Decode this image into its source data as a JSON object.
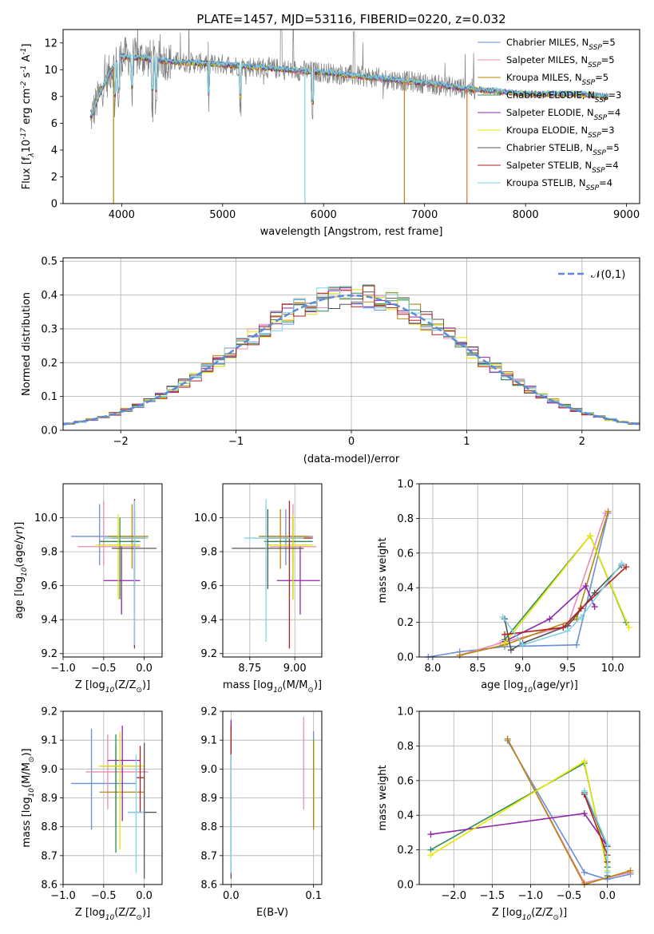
{
  "colors": [
    "#6a8fd6",
    "#e88cb7",
    "#b8860b",
    "#2e8b57",
    "#8e24aa",
    "#e6e600",
    "#555555",
    "#b22222",
    "#7fd3e6"
  ],
  "chart_data": [
    {
      "id": "spectrum",
      "type": "line",
      "title": "PLATE=1457, MJD=53116, FIBERID=0220, z=0.032",
      "xlabel": "wavelength [Angstrom, rest frame]",
      "ylabel": "Flux [f$_\\lambda$10$^{-17}$ erg cm$^{-2}$ s$^{-1}$ A$^{-1}$]",
      "xlim": [
        3420,
        9130
      ],
      "ylim": [
        0,
        13
      ],
      "xticks": [
        "4000",
        "5000",
        "6000",
        "7000",
        "8000",
        "9000"
      ],
      "yticks": [
        "0",
        "2",
        "4",
        "6",
        "8",
        "10",
        "12"
      ],
      "legend_position": "top-right",
      "series": [
        {
          "name": "Chabrier MILES, N$_{SSP}$=5"
        },
        {
          "name": "Salpeter MILES, N$_{SSP}$=5"
        },
        {
          "name": "Kroupa MILES, N$_{SSP}$=5"
        },
        {
          "name": "Chabrier ELODIE, N$_{SSP}$=3"
        },
        {
          "name": "Salpeter ELODIE, N$_{SSP}$=4"
        },
        {
          "name": "Kroupa ELODIE, N$_{SSP}$=3"
        },
        {
          "name": "Chabrier STELIB, N$_{SSP}$=5"
        },
        {
          "name": "Salpeter STELIB, N$_{SSP}$=4"
        },
        {
          "name": "Kroupa STELIB, N$_{SSP}$=4"
        }
      ],
      "model_continuum": {
        "x": [
          3700,
          3800,
          3900,
          4000,
          4200,
          4500,
          5000,
          5500,
          6000,
          6500,
          7000,
          7400,
          8000,
          8500,
          8800
        ],
        "y": [
          6.5,
          8.5,
          10.0,
          11.0,
          10.9,
          10.6,
          10.4,
          10.1,
          9.8,
          9.4,
          9.0,
          8.6,
          8.2,
          8.2,
          8.0
        ]
      }
    },
    {
      "id": "residuals",
      "type": "line",
      "xlabel": "(data-model)/error",
      "ylabel": "Normed distribution",
      "xlim": [
        -2.5,
        2.5
      ],
      "ylim": [
        0,
        0.51
      ],
      "xticks": [
        "−2",
        "−1",
        "0",
        "1",
        "2"
      ],
      "yticks": [
        "0.0",
        "0.1",
        "0.2",
        "0.3",
        "0.4",
        "0.5"
      ],
      "legend": "$\\mathcal{N}(0,1)$",
      "legend_position": "top-right",
      "bin_width": 0.1
    },
    {
      "id": "age-Z",
      "type": "scatter",
      "xlabel": "Z [log$_{10}$(Z/Z$_\\odot$)]",
      "ylabel": "age  [log$_{10}$(age/yr)]",
      "xlim": [
        -1.0,
        0.22
      ],
      "ylim": [
        9.18,
        10.2
      ],
      "xticks": [
        "−1.0",
        "−0.5",
        "0.0"
      ],
      "yticks": [
        "9.2",
        "9.4",
        "9.6",
        "9.8",
        "10.0"
      ],
      "points": [
        {
          "x": -0.55,
          "y": 9.89,
          "xlo": -0.9,
          "xhi": -0.1,
          "ylo": 9.72,
          "yhi": 10.08
        },
        {
          "x": -0.5,
          "y": 9.83,
          "xlo": -0.82,
          "xhi": -0.05,
          "ylo": 9.72,
          "yhi": 10.1
        },
        {
          "x": -0.15,
          "y": 9.89,
          "xlo": -0.45,
          "xhi": 0.05,
          "ylo": 9.7,
          "yhi": 10.08
        },
        {
          "x": -0.3,
          "y": 9.86,
          "xlo": -0.55,
          "xhi": -0.05,
          "ylo": 9.52,
          "yhi": 10.0
        },
        {
          "x": -0.28,
          "y": 9.63,
          "xlo": -0.5,
          "xhi": -0.05,
          "ylo": 9.43,
          "yhi": 9.83
        },
        {
          "x": -0.32,
          "y": 9.84,
          "xlo": -0.6,
          "xhi": -0.05,
          "ylo": 9.52,
          "yhi": 10.02
        },
        {
          "x": -0.12,
          "y": 9.82,
          "xlo": -0.4,
          "xhi": 0.15,
          "ylo": 9.58,
          "yhi": 10.05
        },
        {
          "x": -0.12,
          "y": 9.88,
          "xlo": -0.4,
          "xhi": 0.02,
          "ylo": 9.23,
          "yhi": 10.11
        },
        {
          "x": -0.12,
          "y": 9.88,
          "xlo": -0.5,
          "xhi": 0.05,
          "ylo": 9.25,
          "yhi": 10.1
        }
      ]
    },
    {
      "id": "age-mass",
      "type": "scatter",
      "xlabel": "mass [log$_{10}$(M/M$_\\odot$)]",
      "ylabel": "",
      "xlim": [
        8.6,
        9.15
      ],
      "ylim": [
        9.18,
        10.2
      ],
      "xticks": [
        "8.75",
        "9.00"
      ],
      "yticks": [
        "9.2",
        "9.4",
        "9.6",
        "9.8",
        "10.0"
      ],
      "points": [
        {
          "x": 8.95,
          "y": 9.89,
          "xlo": 8.82,
          "xhi": 9.1,
          "ylo": 9.72,
          "yhi": 10.05
        },
        {
          "x": 8.99,
          "y": 9.83,
          "xlo": 8.86,
          "xhi": 9.12,
          "ylo": 9.72,
          "yhi": 10.08
        },
        {
          "x": 8.92,
          "y": 9.89,
          "xlo": 8.8,
          "xhi": 9.08,
          "ylo": 9.7,
          "yhi": 10.05
        },
        {
          "x": 8.99,
          "y": 9.86,
          "xlo": 8.83,
          "xhi": 9.1,
          "ylo": 9.52,
          "yhi": 10.0
        },
        {
          "x": 9.03,
          "y": 9.63,
          "xlo": 8.9,
          "xhi": 9.14,
          "ylo": 9.43,
          "yhi": 9.83
        },
        {
          "x": 8.99,
          "y": 9.84,
          "xlo": 8.84,
          "xhi": 9.1,
          "ylo": 9.52,
          "yhi": 10.02
        },
        {
          "x": 8.85,
          "y": 9.82,
          "xlo": 8.65,
          "xhi": 9.05,
          "ylo": 9.58,
          "yhi": 10.05
        },
        {
          "x": 8.97,
          "y": 9.88,
          "xlo": 8.85,
          "xhi": 9.1,
          "ylo": 9.23,
          "yhi": 10.1
        },
        {
          "x": 8.84,
          "y": 9.88,
          "xlo": 8.72,
          "xhi": 9.05,
          "ylo": 9.27,
          "yhi": 10.11
        }
      ]
    },
    {
      "id": "weight-age",
      "type": "line",
      "xlabel": "age  [log$_{10}$(age/yr)]",
      "ylabel": "mass weight",
      "xlim": [
        7.85,
        10.3
      ],
      "ylim": [
        0,
        1.0
      ],
      "xticks": [
        "8.0",
        "8.5",
        "9.0",
        "9.5",
        "10.0"
      ],
      "yticks": [
        "0.0",
        "0.2",
        "0.4",
        "0.6",
        "0.8",
        "1.0"
      ],
      "series": [
        {
          "x": [
            7.95,
            8.3,
            8.8,
            9.6,
            9.95
          ],
          "y": [
            0.0,
            0.03,
            0.06,
            0.07,
            0.83
          ]
        },
        {
          "x": [
            8.3,
            8.75,
            9.5,
            9.92
          ],
          "y": [
            0.01,
            0.08,
            0.18,
            0.83
          ]
        },
        {
          "x": [
            8.3,
            8.8,
            9.6,
            9.95
          ],
          "y": [
            0.01,
            0.07,
            0.22,
            0.84
          ]
        },
        {
          "x": [
            8.8,
            9.75,
            10.15
          ],
          "y": [
            0.1,
            0.7,
            0.2
          ]
        },
        {
          "x": [
            8.8,
            9.3,
            9.7,
            9.8
          ],
          "y": [
            0.09,
            0.22,
            0.41,
            0.29
          ]
        },
        {
          "x": [
            8.8,
            9.75,
            10.18
          ],
          "y": [
            0.08,
            0.7,
            0.17
          ]
        },
        {
          "x": [
            8.8,
            8.87,
            9.0,
            9.5,
            9.8,
            10.1
          ],
          "y": [
            0.22,
            0.04,
            0.08,
            0.18,
            0.37,
            0.53
          ]
        },
        {
          "x": [
            8.8,
            9.45,
            9.65,
            10.15
          ],
          "y": [
            0.13,
            0.17,
            0.28,
            0.52
          ]
        },
        {
          "x": [
            8.78,
            9.0,
            9.5,
            9.65,
            10.1
          ],
          "y": [
            0.23,
            0.07,
            0.15,
            0.23,
            0.54
          ]
        }
      ]
    },
    {
      "id": "mass-Z",
      "type": "scatter",
      "xlabel": "Z [log$_{10}$(Z/Z$_\\odot$)]",
      "ylabel": "mass [log$_{10}$(M/M$_\\odot$)]",
      "xlim": [
        -1.0,
        0.22
      ],
      "ylim": [
        8.6,
        9.2
      ],
      "xticks": [
        "−1.0",
        "−0.5",
        "0.0"
      ],
      "yticks": [
        "8.6",
        "8.7",
        "8.8",
        "8.9",
        "9.0",
        "9.1",
        "9.2"
      ],
      "points": [
        {
          "x": -0.65,
          "y": 8.95,
          "xlo": -0.9,
          "xhi": -0.1,
          "ylo": 8.79,
          "yhi": 9.14
        },
        {
          "x": -0.45,
          "y": 8.99,
          "xlo": -0.72,
          "xhi": 0.05,
          "ylo": 8.86,
          "yhi": 9.12
        },
        {
          "x": -0.35,
          "y": 8.92,
          "xlo": -0.55,
          "xhi": 0.0,
          "ylo": 8.8,
          "yhi": 9.08
        },
        {
          "x": -0.35,
          "y": 9.01,
          "xlo": -0.55,
          "xhi": -0.05,
          "ylo": 8.71,
          "yhi": 9.12
        },
        {
          "x": -0.27,
          "y": 9.03,
          "xlo": -0.45,
          "xhi": -0.05,
          "ylo": 8.82,
          "yhi": 9.15
        },
        {
          "x": -0.3,
          "y": 9.01,
          "xlo": -0.55,
          "xhi": 0.0,
          "ylo": 8.72,
          "yhi": 9.13
        },
        {
          "x": 0.0,
          "y": 8.85,
          "xlo": -0.2,
          "xhi": 0.15,
          "ylo": 8.62,
          "yhi": 9.09
        },
        {
          "x": -0.05,
          "y": 8.97,
          "xlo": -0.1,
          "xhi": 0.0,
          "ylo": 8.85,
          "yhi": 9.08
        },
        {
          "x": -0.1,
          "y": 8.85,
          "xlo": -0.2,
          "xhi": 0.0,
          "ylo": 8.64,
          "yhi": 9.05
        }
      ]
    },
    {
      "id": "mass-EBV",
      "type": "scatter",
      "xlabel": "E(B-V)",
      "ylabel": "",
      "xlim": [
        -0.01,
        0.11
      ],
      "ylim": [
        8.6,
        9.2
      ],
      "xticks": [
        "0.0",
        "0.1"
      ],
      "yticks": [
        "8.6",
        "8.7",
        "8.8",
        "8.9",
        "9.0",
        "9.1",
        "9.2"
      ],
      "points": [
        {
          "x": 0.1,
          "y": 8.95,
          "ylo": 8.8,
          "yhi": 9.13
        },
        {
          "x": 0.088,
          "y": 8.99,
          "ylo": 8.86,
          "yhi": 9.18
        },
        {
          "x": 0.1,
          "y": 8.92,
          "ylo": 8.79,
          "yhi": 9.1
        },
        {
          "x": 0.0,
          "y": 8.95,
          "ylo": 8.71,
          "yhi": 9.14
        },
        {
          "x": 0.0,
          "y": 9.03,
          "ylo": 8.82,
          "yhi": 9.17
        },
        {
          "x": 0.0,
          "y": 8.95,
          "ylo": 8.72,
          "yhi": 9.13
        },
        {
          "x": 0.0,
          "y": 8.85,
          "ylo": 8.62,
          "yhi": 9.1
        },
        {
          "x": 0.0,
          "y": 8.97,
          "ylo": 8.85,
          "yhi": 9.15
        },
        {
          "x": 0.0,
          "y": 8.85,
          "ylo": 8.64,
          "yhi": 9.05
        }
      ]
    },
    {
      "id": "weight-Z",
      "type": "line",
      "xlabel": "Z [log$_{10}$(Z/Z$_\\odot$)]",
      "ylabel": "mass weight",
      "xlim": [
        -2.45,
        0.42
      ],
      "ylim": [
        0,
        1.0
      ],
      "xticks": [
        "−2.0",
        "−1.5",
        "−1.0",
        "−0.5",
        "0.0"
      ],
      "yticks": [
        "0.0",
        "0.2",
        "0.4",
        "0.6",
        "0.8",
        "1.0"
      ],
      "series": [
        {
          "x": [
            -1.3,
            -0.3,
            0.0,
            0.3
          ],
          "y": [
            0.83,
            0.07,
            0.03,
            0.06
          ]
        },
        {
          "x": [
            -1.3,
            -0.3,
            0.3
          ],
          "y": [
            0.84,
            0.01,
            0.07
          ]
        },
        {
          "x": [
            -1.3,
            -0.3,
            0.3
          ],
          "y": [
            0.84,
            0.0,
            0.08
          ]
        },
        {
          "x": [
            -2.3,
            -0.3,
            0.0
          ],
          "y": [
            0.2,
            0.7,
            0.1
          ]
        },
        {
          "x": [
            -2.3,
            -0.3,
            0.0
          ],
          "y": [
            0.29,
            0.41,
            0.22
          ]
        },
        {
          "x": [
            -2.3,
            -0.3,
            0.0
          ],
          "y": [
            0.17,
            0.71,
            0.08
          ]
        },
        {
          "x": [
            -0.3,
            0.0,
            0.0
          ],
          "y": [
            0.53,
            0.22,
            0.05
          ]
        },
        {
          "x": [
            -0.3,
            0.0,
            0.0
          ],
          "y": [
            0.52,
            0.17,
            0.13
          ]
        },
        {
          "x": [
            -0.3,
            0.0,
            0.0
          ],
          "y": [
            0.54,
            0.23,
            0.07
          ]
        }
      ]
    }
  ]
}
